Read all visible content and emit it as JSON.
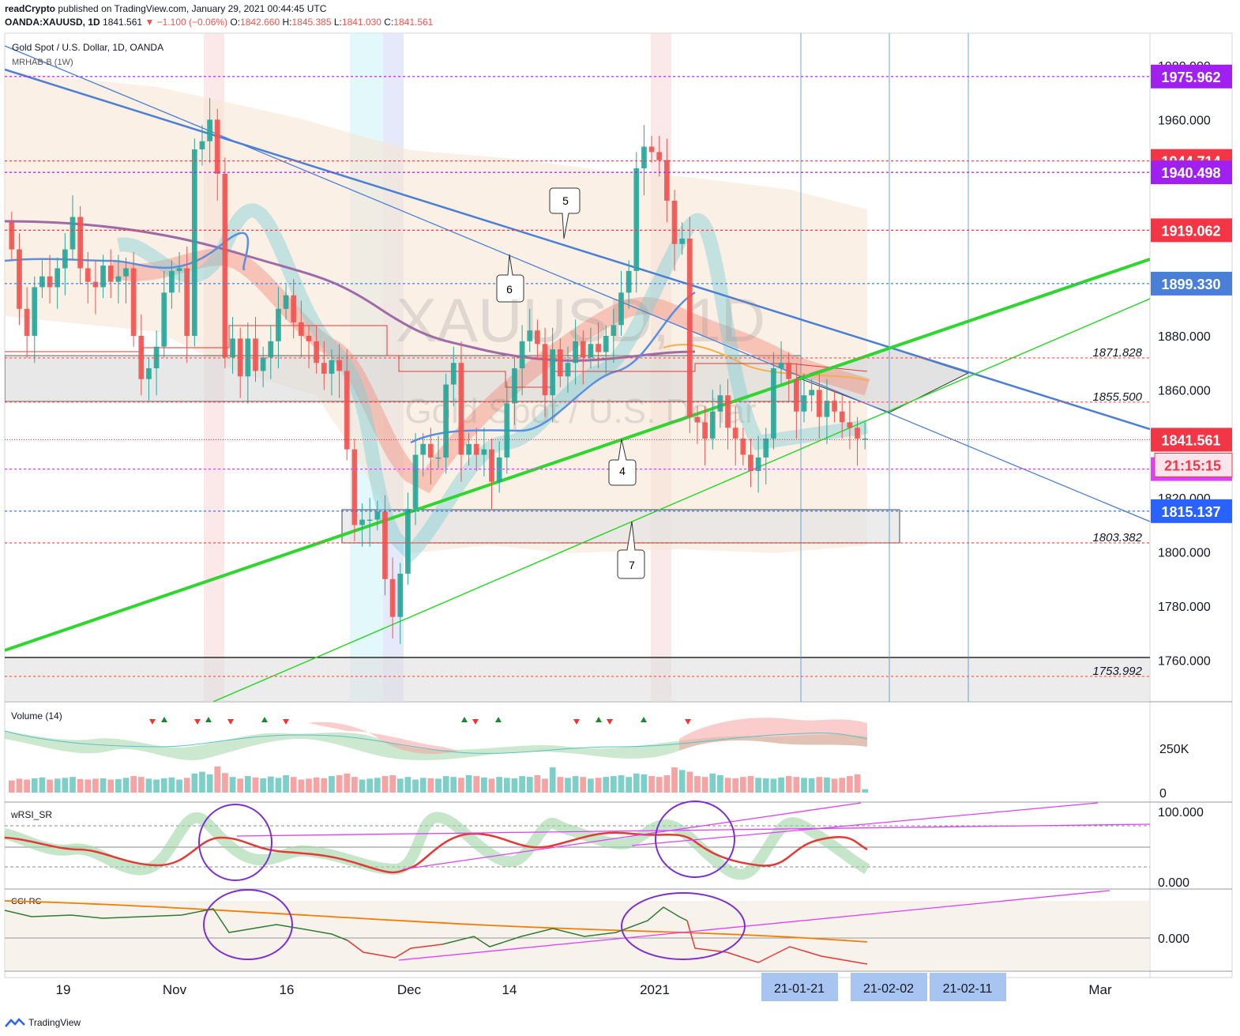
{
  "header": {
    "publisher": "readCrypto",
    "published_text": "published on TradingView.com, January 29, 2021 00:44:45 UTC",
    "symbol": "OANDA:XAUUSD, 1D",
    "last": "1841.561",
    "change": "▼ −1.100 (−0.06%)",
    "open_label": "O:",
    "open": "1842.660",
    "high_label": "H:",
    "high": "1845.385",
    "low_label": "L:",
    "low": "1841.030",
    "close_label": "C:",
    "close": "1841.561"
  },
  "legend": {
    "instrument": "Gold Spot / U.S. Dollar, 1D, OANDA",
    "indicator": "MRHAB-B (1W)"
  },
  "watermark": {
    "symbol": "XAUUSD, 1D",
    "name": "Gold Spot / U.S. Dollar"
  },
  "panes": {
    "volume_label": "Volume (14)",
    "volume_ticks": [
      "250K",
      "0"
    ],
    "rsi_label": "wRSI_SR",
    "rsi_ticks": [
      "100.000",
      "0.000"
    ],
    "cci_label": "CCI-RC",
    "cci_ticks": [
      "0.000"
    ]
  },
  "callouts": [
    "5",
    "6",
    "4",
    "7"
  ],
  "date_badges": [
    "21-01-21",
    "21-02-02",
    "21-02-11"
  ],
  "footer": {
    "brand": "TradingView"
  },
  "colors": {
    "up": "#26a69a",
    "down": "#ef5350",
    "green_line": "#2fd62f",
    "blue_line": "#4a7fd6",
    "purple": "#a020f0",
    "red_tag": "#f23645",
    "blue_tag": "#2962ff",
    "magenta": "#e040fb"
  },
  "chart_data": {
    "type": "candlestick",
    "title": "Gold Spot / U.S. Dollar, 1D, OANDA",
    "y_ticks": [
      1980,
      1960,
      1880,
      1860,
      1820,
      1800,
      1780,
      1760
    ],
    "y_tick_labels": [
      "1980.000",
      "1960.000",
      "1880.000",
      "1860.000",
      "1820.000",
      "1800.000",
      "1780.000",
      "1760.000"
    ],
    "x_tick_labels": [
      "19",
      "Nov",
      "16",
      "Dec",
      "14",
      "2021",
      "Mar"
    ],
    "price_levels": [
      {
        "value": 1975.962,
        "label": "1975.962",
        "style": "tag",
        "color": "#a020f0"
      },
      {
        "value": 1944.714,
        "label": "1944.714",
        "style": "tag",
        "color": "#f23645"
      },
      {
        "value": 1940.498,
        "label": "1940.498",
        "style": "tag",
        "color": "#a020f0"
      },
      {
        "value": 1919.062,
        "label": "1919.062",
        "style": "tag",
        "color": "#f23645"
      },
      {
        "value": 1899.33,
        "label": "1899.330",
        "style": "tag",
        "color": "#4a7fd6"
      },
      {
        "value": 1871.828,
        "label": "1871.828",
        "style": "text",
        "color": "#ef5350"
      },
      {
        "value": 1855.5,
        "label": "1855.500",
        "style": "text",
        "color": "#ef5350"
      },
      {
        "value": 1841.561,
        "label": "1841.561",
        "style": "tag",
        "color": "#f23645"
      },
      {
        "value": 1830.705,
        "label": "1830.705",
        "style": "tag",
        "color": "#e040fb"
      },
      {
        "value": 1815.137,
        "label": "1815.137",
        "style": "tag",
        "color": "#2962ff"
      },
      {
        "value": 1803.382,
        "label": "1803.382",
        "style": "text",
        "color": "#ef5350"
      },
      {
        "value": 1753.992,
        "label": "1753.992",
        "style": "text",
        "color": "#ef5350"
      }
    ],
    "countdown": "21:15:15",
    "candles": [
      [
        1922,
        1912
      ],
      [
        1912,
        1890
      ],
      [
        1890,
        1880
      ],
      [
        1880,
        1898
      ],
      [
        1898,
        1902
      ],
      [
        1902,
        1898
      ],
      [
        1898,
        1905
      ],
      [
        1905,
        1912
      ],
      [
        1912,
        1924
      ],
      [
        1924,
        1905
      ],
      [
        1905,
        1900
      ],
      [
        1900,
        1898
      ],
      [
        1898,
        1906
      ],
      [
        1906,
        1900
      ],
      [
        1900,
        1902
      ],
      [
        1902,
        1905
      ],
      [
        1905,
        1880
      ],
      [
        1880,
        1864
      ],
      [
        1864,
        1868
      ],
      [
        1868,
        1876
      ],
      [
        1876,
        1896
      ],
      [
        1896,
        1904
      ],
      [
        1904,
        1905
      ],
      [
        1905,
        1880
      ],
      [
        1880,
        1949
      ],
      [
        1949,
        1952
      ],
      [
        1952,
        1960
      ],
      [
        1960,
        1940
      ],
      [
        1940,
        1872
      ],
      [
        1872,
        1879
      ],
      [
        1879,
        1865
      ],
      [
        1865,
        1879
      ],
      [
        1879,
        1867
      ],
      [
        1867,
        1872
      ],
      [
        1872,
        1878
      ],
      [
        1878,
        1890
      ],
      [
        1890,
        1895
      ],
      [
        1895,
        1885
      ],
      [
        1885,
        1880
      ],
      [
        1880,
        1878
      ],
      [
        1878,
        1870
      ],
      [
        1870,
        1866
      ],
      [
        1866,
        1871
      ],
      [
        1871,
        1867
      ],
      [
        1867,
        1838
      ],
      [
        1838,
        1810
      ],
      [
        1810,
        1812
      ],
      [
        1812,
        1812
      ],
      [
        1812,
        1815
      ],
      [
        1815,
        1790
      ],
      [
        1790,
        1776
      ],
      [
        1776,
        1792
      ],
      [
        1792,
        1816
      ],
      [
        1816,
        1836
      ],
      [
        1836,
        1840
      ],
      [
        1840,
        1835
      ],
      [
        1835,
        1835
      ],
      [
        1835,
        1862
      ],
      [
        1862,
        1870
      ],
      [
        1870,
        1836
      ],
      [
        1836,
        1840
      ],
      [
        1840,
        1836
      ],
      [
        1836,
        1838
      ],
      [
        1838,
        1826
      ],
      [
        1826,
        1835
      ],
      [
        1835,
        1855
      ],
      [
        1855,
        1868
      ],
      [
        1868,
        1878
      ],
      [
        1878,
        1882
      ],
      [
        1882,
        1877
      ],
      [
        1877,
        1858
      ],
      [
        1858,
        1875
      ],
      [
        1875,
        1865
      ],
      [
        1865,
        1870
      ],
      [
        1870,
        1878
      ],
      [
        1878,
        1872
      ],
      [
        1872,
        1877
      ],
      [
        1877,
        1874
      ],
      [
        1874,
        1880
      ],
      [
        1880,
        1884
      ],
      [
        1884,
        1896
      ],
      [
        1896,
        1904
      ],
      [
        1904,
        1942
      ],
      [
        1942,
        1950
      ],
      [
        1950,
        1948
      ],
      [
        1948,
        1945
      ],
      [
        1945,
        1930
      ],
      [
        1930,
        1914
      ],
      [
        1914,
        1916
      ],
      [
        1916,
        1850
      ],
      [
        1850,
        1848
      ],
      [
        1848,
        1842
      ],
      [
        1842,
        1852
      ],
      [
        1852,
        1858
      ],
      [
        1858,
        1846
      ],
      [
        1846,
        1842
      ],
      [
        1842,
        1836
      ],
      [
        1836,
        1830
      ],
      [
        1830,
        1835
      ],
      [
        1835,
        1842
      ],
      [
        1842,
        1868
      ],
      [
        1868,
        1870
      ],
      [
        1870,
        1864
      ],
      [
        1864,
        1852
      ],
      [
        1852,
        1858
      ],
      [
        1858,
        1860
      ],
      [
        1860,
        1850
      ],
      [
        1850,
        1856
      ],
      [
        1856,
        1852
      ],
      [
        1852,
        1848
      ],
      [
        1848,
        1846
      ],
      [
        1846,
        1842
      ],
      [
        1842,
        1842
      ]
    ],
    "volume": [
      28,
      32,
      30,
      33,
      35,
      30,
      32,
      34,
      36,
      31,
      30,
      32,
      33,
      30,
      31,
      34,
      38,
      36,
      32,
      30,
      33,
      35,
      30,
      34,
      44,
      48,
      42,
      60,
      45,
      36,
      32,
      38,
      35,
      33,
      37,
      34,
      40,
      36,
      30,
      32,
      35,
      33,
      38,
      40,
      44,
      36,
      30,
      32,
      34,
      38,
      40,
      32,
      36,
      30,
      34,
      33,
      32,
      38,
      36,
      34,
      40,
      38,
      35,
      32,
      36,
      34,
      33,
      38,
      36,
      40,
      32,
      58,
      36,
      34,
      38,
      36,
      32,
      34,
      36,
      38,
      40,
      36,
      44,
      42,
      38,
      36,
      40,
      58,
      52,
      48,
      38,
      36,
      44,
      40,
      34,
      33,
      36,
      38,
      34,
      33,
      32,
      35,
      38,
      36,
      34,
      33,
      36,
      35,
      32,
      34,
      38,
      42,
      8
    ],
    "rsi_range": [
      0,
      100
    ],
    "cci_zero": 0
  }
}
